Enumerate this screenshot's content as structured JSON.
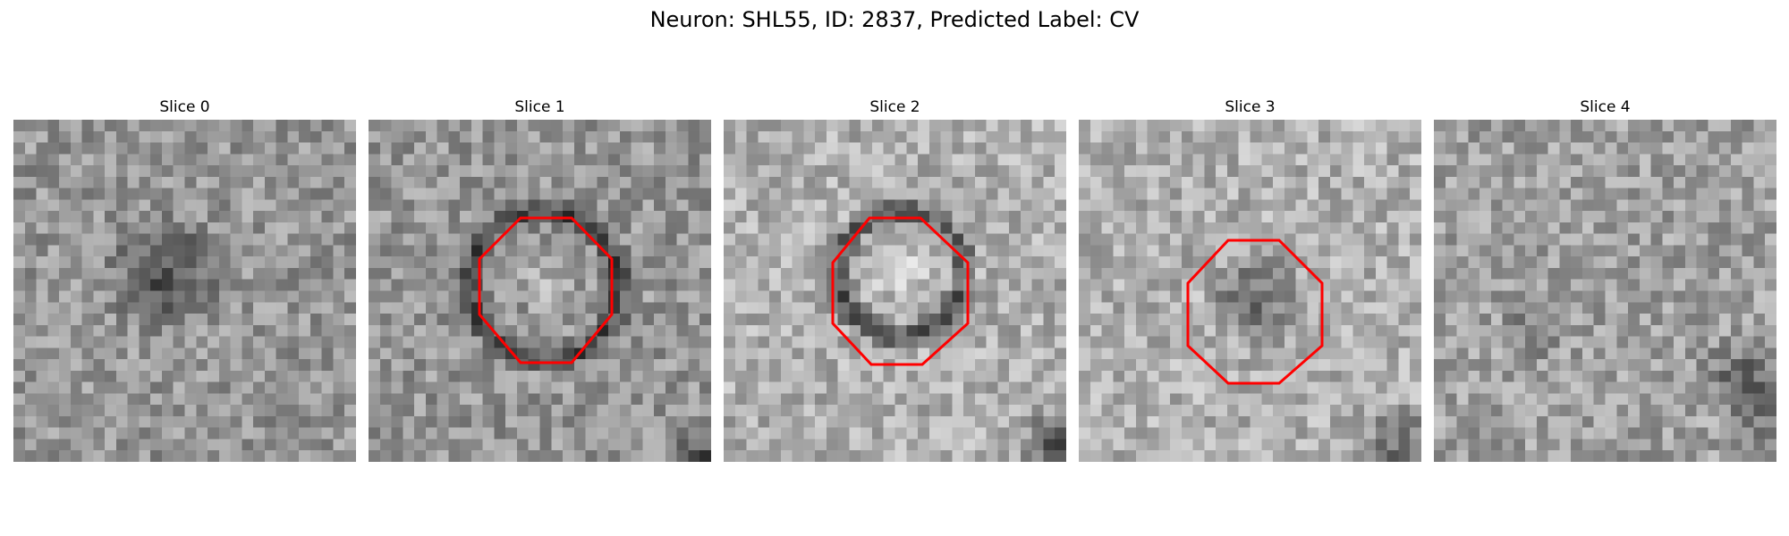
{
  "figure": {
    "title": "Neuron: SHL55, ID: 2837, Predicted Label: CV"
  },
  "panels": [
    {
      "title": "Slice 0",
      "has_outline": false
    },
    {
      "title": "Slice 1",
      "has_outline": true
    },
    {
      "title": "Slice 2",
      "has_outline": true
    },
    {
      "title": "Slice 3",
      "has_outline": true
    },
    {
      "title": "Slice 4",
      "has_outline": false
    }
  ],
  "colors": {
    "outline": "#ff0000",
    "background": "#ffffff"
  }
}
